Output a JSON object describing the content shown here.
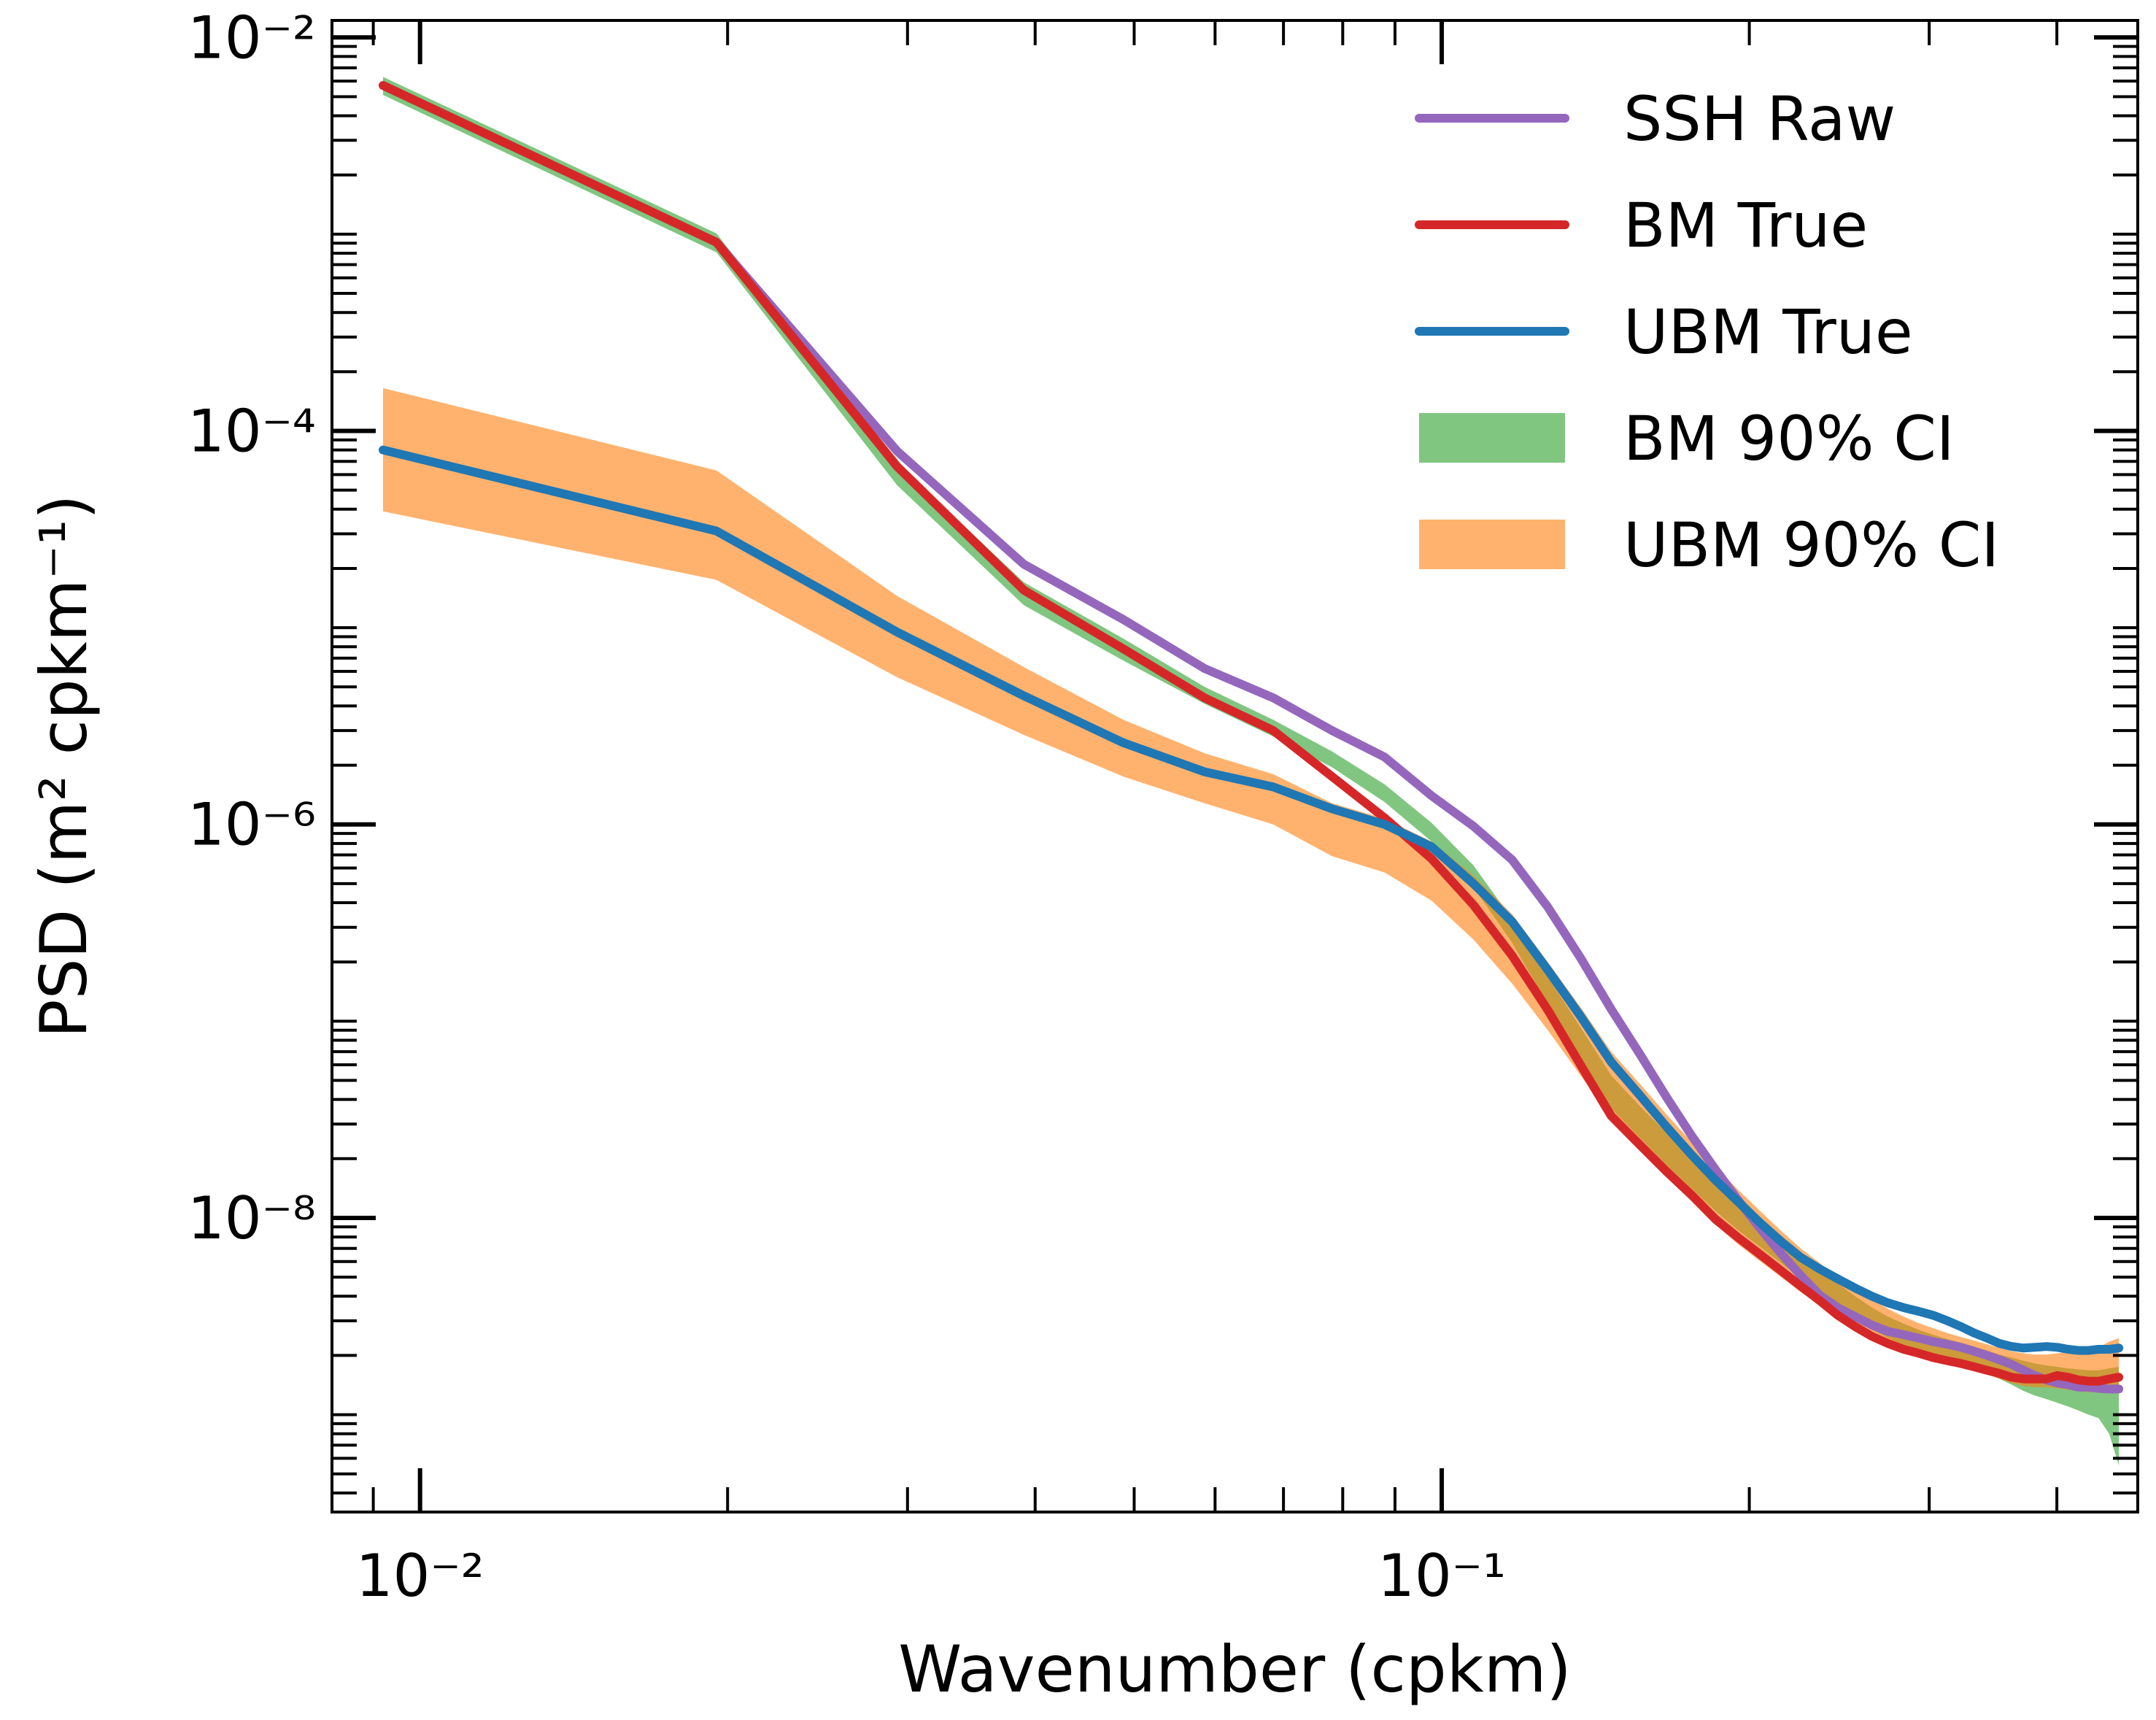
{
  "chart_data": {
    "type": "line",
    "xscale": "log",
    "yscale": "log",
    "xlabel": "Wavenumber (cpkm)",
    "ylabel": "PSD (m² cpkm⁻¹)",
    "xlim": [
      0.0082,
      0.48
    ],
    "ylim": [
      3.2e-10,
      0.0122
    ],
    "x_tick_labels": [
      "10⁻²",
      "10⁻¹"
    ],
    "y_tick_labels": [
      "10⁻⁸",
      "10⁻⁶",
      "10⁻⁴",
      "10⁻²"
    ],
    "x_ticks": [
      0.01,
      0.1
    ],
    "y_ticks": [
      1e-08,
      1e-06,
      0.0001,
      0.01
    ],
    "legend_position": "upper-right",
    "grid": false,
    "x": [
      0.0092,
      0.0195,
      0.0293,
      0.039,
      0.0488,
      0.0586,
      0.0684,
      0.0781,
      0.0879,
      0.0977,
      0.1074,
      0.1172,
      0.127,
      0.1367,
      0.1465,
      0.1563,
      0.166,
      0.1758,
      0.1855,
      0.1953,
      0.2051,
      0.2148,
      0.2246,
      0.2344,
      0.2441,
      0.2539,
      0.2637,
      0.2734,
      0.2832,
      0.293,
      0.3027,
      0.3125,
      0.3223,
      0.332,
      0.3418,
      0.3516,
      0.3613,
      0.3711,
      0.3809,
      0.3906,
      0.4004,
      0.4102,
      0.4199,
      0.4297,
      0.4395,
      0.45,
      0.46
    ],
    "series": [
      {
        "name": "SSH Raw",
        "kind": "line",
        "color": "#9467bd",
        "values": [
          0.0057,
          0.00091,
          7.9e-05,
          2.1e-05,
          1.1e-05,
          6.2e-06,
          4.4e-06,
          3e-06,
          2.2e-06,
          1.4e-06,
          9.8e-07,
          6.6e-07,
          3.8e-07,
          2.1e-07,
          1.15e-07,
          6.8e-08,
          4.1e-08,
          2.6e-08,
          1.75e-08,
          1.22e-08,
          8.8e-09,
          6.6e-09,
          5.1e-09,
          4.05e-09,
          3.5e-09,
          3.15e-09,
          2.85e-09,
          2.65e-09,
          2.55e-09,
          2.45e-09,
          2.35e-09,
          2.28e-09,
          2.2e-09,
          2.1e-09,
          2e-09,
          1.9e-09,
          1.8e-09,
          1.68e-09,
          1.58e-09,
          1.5e-09,
          1.45e-09,
          1.42e-09,
          1.38e-09,
          1.38e-09,
          1.36e-09,
          1.35e-09,
          1.35e-09
        ]
      },
      {
        "name": "BM True",
        "kind": "line",
        "color": "#d62728",
        "values": [
          0.0057,
          0.00091,
          6.6e-05,
          1.55e-05,
          7.8e-06,
          4.4e-06,
          3e-06,
          1.75e-06,
          1.08e-06,
          6.7e-07,
          3.9e-07,
          2.15e-07,
          1.14e-07,
          6e-08,
          3.3e-08,
          2.35e-08,
          1.72e-08,
          1.3e-08,
          9.8e-09,
          7.9e-09,
          6.5e-09,
          5.4e-09,
          4.5e-09,
          3.8e-09,
          3.2e-09,
          2.8e-09,
          2.5e-09,
          2.3e-09,
          2.15e-09,
          2.05e-09,
          1.95e-09,
          1.88e-09,
          1.82e-09,
          1.75e-09,
          1.68e-09,
          1.62e-09,
          1.55e-09,
          1.52e-09,
          1.52e-09,
          1.52e-09,
          1.58e-09,
          1.55e-09,
          1.5e-09,
          1.48e-09,
          1.48e-09,
          1.52e-09,
          1.55e-09
        ]
      },
      {
        "name": "UBM True",
        "kind": "line",
        "color": "#1f77b4",
        "values": [
          8e-05,
          3.1e-05,
          9.5e-06,
          4.5e-06,
          2.6e-06,
          1.85e-06,
          1.55e-06,
          1.2e-06,
          1e-06,
          7.7e-07,
          5e-07,
          3.2e-07,
          1.82e-07,
          1.06e-07,
          6.2e-08,
          4.2e-08,
          2.9e-08,
          2.08e-08,
          1.55e-08,
          1.2e-08,
          9.4e-09,
          7.6e-09,
          6.3e-09,
          5.5e-09,
          4.9e-09,
          4.4e-09,
          4e-09,
          3.7e-09,
          3.5e-09,
          3.35e-09,
          3.2e-09,
          3e-09,
          2.8e-09,
          2.6e-09,
          2.45e-09,
          2.3e-09,
          2.22e-09,
          2.18e-09,
          2.2e-09,
          2.22e-09,
          2.2e-09,
          2.15e-09,
          2.12e-09,
          2.12e-09,
          2.15e-09,
          2.15e-09,
          2.18e-09
        ]
      }
    ],
    "bands": [
      {
        "name": "BM 90% CI",
        "kind": "band",
        "color": "#2ca02c",
        "opacity": 0.6,
        "lower": [
          0.0051,
          0.00081,
          5.3e-05,
          1.3e-05,
          6.8e-06,
          4.1e-06,
          2.8e-06,
          1.95e-06,
          1.3e-06,
          8.2e-07,
          4.8e-07,
          2.5e-07,
          1.22e-07,
          6.5e-08,
          3.6e-08,
          2.55e-08,
          1.85e-08,
          1.4e-08,
          1.08e-08,
          8.6e-09,
          7.1e-09,
          5.9e-09,
          4.9e-09,
          4.1e-09,
          3.5e-09,
          3.05e-09,
          2.7e-09,
          2.45e-09,
          2.25e-09,
          2.1e-09,
          2e-09,
          1.9e-09,
          1.82e-09,
          1.72e-09,
          1.62e-09,
          1.52e-09,
          1.42e-09,
          1.32e-09,
          1.25e-09,
          1.2e-09,
          1.15e-09,
          1.1e-09,
          1.05e-09,
          1e-09,
          9.6e-10,
          8e-10,
          5.5e-10
        ],
        "upper": [
          0.0063,
          0.00101,
          6.9e-05,
          1.7e-05,
          8.8e-06,
          5e-06,
          3.4e-06,
          2.35e-06,
          1.6e-06,
          1.02e-06,
          6.2e-07,
          3.3e-07,
          1.68e-07,
          9.3e-08,
          5.3e-08,
          3.7e-08,
          2.7e-08,
          2.02e-08,
          1.55e-08,
          1.22e-08,
          9.8e-09,
          8e-09,
          6.6e-09,
          5.5e-09,
          4.65e-09,
          4e-09,
          3.5e-09,
          3.15e-09,
          2.9e-09,
          2.7e-09,
          2.55e-09,
          2.42e-09,
          2.32e-09,
          2.22e-09,
          2.12e-09,
          2.02e-09,
          1.95e-09,
          1.88e-09,
          1.82e-09,
          1.78e-09,
          1.75e-09,
          1.72e-09,
          1.7e-09,
          1.68e-09,
          1.68e-09,
          1.72e-09,
          1.75e-09
        ]
      },
      {
        "name": "UBM 90% CI",
        "kind": "band",
        "color": "#ff7f0e",
        "opacity": 0.6,
        "lower": [
          3.9e-05,
          1.75e-05,
          5.6e-06,
          2.85e-06,
          1.75e-06,
          1.28e-06,
          1e-06,
          6.9e-07,
          5.7e-07,
          4.1e-07,
          2.6e-07,
          1.55e-07,
          9e-08,
          5.3e-08,
          3.3e-08,
          2.3e-08,
          1.65e-08,
          1.22e-08,
          9.2e-09,
          7.3e-09,
          6e-09,
          5e-09,
          4.2e-09,
          3.6e-09,
          3.15e-09,
          2.8e-09,
          2.5e-09,
          2.28e-09,
          2.12e-09,
          2e-09,
          1.9e-09,
          1.82e-09,
          1.75e-09,
          1.68e-09,
          1.6e-09,
          1.52e-09,
          1.45e-09,
          1.4e-09,
          1.38e-09,
          1.38e-09,
          1.36e-09,
          1.34e-09,
          1.32e-09,
          1.3e-09,
          1.3e-09,
          1.3e-09,
          1.3e-09
        ],
        "upper": [
          0.000165,
          6.3e-05,
          1.45e-05,
          6.3e-06,
          3.4e-06,
          2.3e-06,
          1.8e-06,
          1.28e-06,
          1.07e-06,
          8.2e-07,
          5.5e-07,
          3.5e-07,
          2e-07,
          1.18e-07,
          7e-08,
          4.8e-08,
          3.35e-08,
          2.42e-08,
          1.8e-08,
          1.38e-08,
          1.08e-08,
          8.6e-09,
          7e-09,
          5.9e-09,
          5e-09,
          4.35e-09,
          3.85e-09,
          3.45e-09,
          3.15e-09,
          2.92e-09,
          2.75e-09,
          2.6e-09,
          2.48e-09,
          2.38e-09,
          2.28e-09,
          2.18e-09,
          2.1e-09,
          2.05e-09,
          2.02e-09,
          2.02e-09,
          2.05e-09,
          2.08e-09,
          2.1e-09,
          2.15e-09,
          2.2e-09,
          2.35e-09,
          2.45e-09
        ]
      }
    ]
  }
}
